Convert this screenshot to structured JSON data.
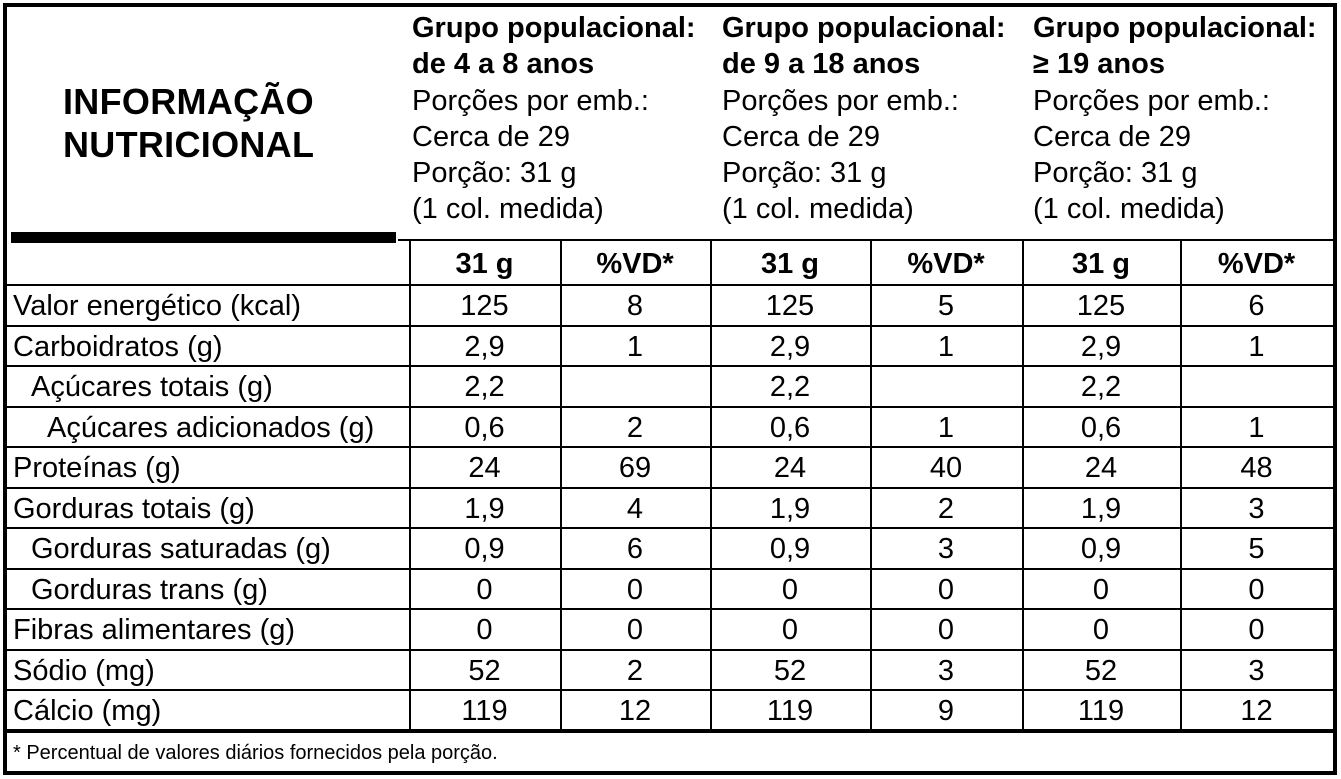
{
  "title": {
    "line1": "INFORMAÇÃO",
    "line2": "NUTRICIONAL"
  },
  "groups": [
    {
      "name": "Grupo populacional:",
      "age": "de 4 a 8 anos",
      "portions_label": "Porções por emb.:",
      "portions_value": "Cerca de 29",
      "portion": "Porção: 31 g",
      "measure": "(1 col. medida)",
      "col_amount": "31 g",
      "col_vd": "%VD*"
    },
    {
      "name": "Grupo populacional:",
      "age": "de 9 a 18 anos",
      "portions_label": "Porções por emb.:",
      "portions_value": "Cerca de 29",
      "portion": "Porção: 31 g",
      "measure": "(1 col. medida)",
      "col_amount": "31 g",
      "col_vd": "%VD*"
    },
    {
      "name": "Grupo populacional:",
      "age": "≥ 19 anos",
      "portions_label": "Porções por emb.:",
      "portions_value": "Cerca de 29",
      "portion": "Porção: 31 g",
      "measure": "(1 col. medida)",
      "col_amount": "31 g",
      "col_vd": "%VD*"
    }
  ],
  "rows": [
    {
      "label": "Valor energético (kcal)",
      "indent": 0,
      "values": [
        "125",
        "8",
        "125",
        "5",
        "125",
        "6"
      ]
    },
    {
      "label": "Carboidratos (g)",
      "indent": 0,
      "values": [
        "2,9",
        "1",
        "2,9",
        "1",
        "2,9",
        "1"
      ]
    },
    {
      "label": "Açúcares totais (g)",
      "indent": 1,
      "values": [
        "2,2",
        "",
        "2,2",
        "",
        "2,2",
        ""
      ]
    },
    {
      "label": "Açúcares adicionados (g)",
      "indent": 2,
      "values": [
        "0,6",
        "2",
        "0,6",
        "1",
        "0,6",
        "1"
      ]
    },
    {
      "label": "Proteínas (g)",
      "indent": 0,
      "values": [
        "24",
        "69",
        "24",
        "40",
        "24",
        "48"
      ]
    },
    {
      "label": "Gorduras totais (g)",
      "indent": 0,
      "values": [
        "1,9",
        "4",
        "1,9",
        "2",
        "1,9",
        "3"
      ]
    },
    {
      "label": "Gorduras saturadas (g)",
      "indent": 1,
      "values": [
        "0,9",
        "6",
        "0,9",
        "3",
        "0,9",
        "5"
      ]
    },
    {
      "label": "Gorduras trans (g)",
      "indent": 1,
      "values": [
        "0",
        "0",
        "0",
        "0",
        "0",
        "0"
      ]
    },
    {
      "label": "Fibras alimentares (g)",
      "indent": 0,
      "values": [
        "0",
        "0",
        "0",
        "0",
        "0",
        "0"
      ]
    },
    {
      "label": "Sódio (mg)",
      "indent": 0,
      "values": [
        "52",
        "2",
        "52",
        "3",
        "52",
        "3"
      ]
    },
    {
      "label": "Cálcio (mg)",
      "indent": 0,
      "values": [
        "119",
        "12",
        "119",
        "9",
        "119",
        "12"
      ]
    }
  ],
  "footnote": "* Percentual de valores diários fornecidos pela porção."
}
